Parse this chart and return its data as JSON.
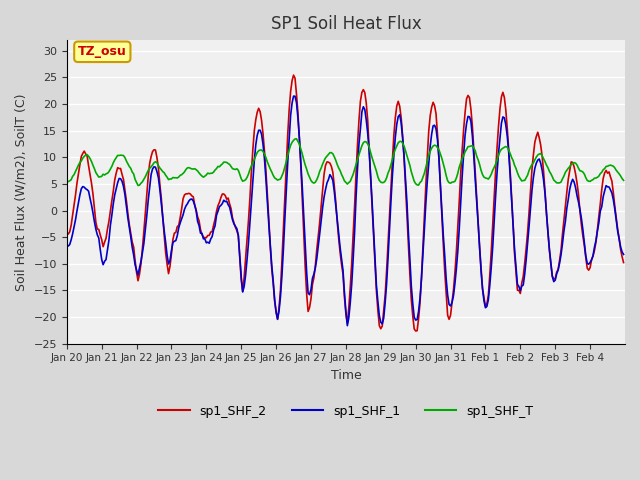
{
  "title": "SP1 Soil Heat Flux",
  "xlabel": "Time",
  "ylabel": "Soil Heat Flux (W/m2), SoilT (C)",
  "ylim": [
    -25,
    32
  ],
  "yticks": [
    -25,
    -20,
    -15,
    -10,
    -5,
    0,
    5,
    10,
    15,
    20,
    25,
    30
  ],
  "xtick_labels": [
    "Jan 20",
    "Jan 21",
    "Jan 22",
    "Jan 23",
    "Jan 24",
    "Jan 25",
    "Jan 26",
    "Jan 27",
    "Jan 28",
    "Jan 29",
    "Jan 30",
    "Jan 31",
    "Feb 1",
    "Feb 2",
    "Feb 3",
    "Feb 4"
  ],
  "legend_labels": [
    "sp1_SHF_2",
    "sp1_SHF_1",
    "sp1_SHF_T"
  ],
  "colors": [
    "#cc0000",
    "#0000cc",
    "#00aa00"
  ],
  "tz_label": "TZ_osu",
  "tz_bg": "#ffff99",
  "tz_border": "#cc9900",
  "tz_text_color": "#cc0000",
  "plot_bg_color": "#f0f0f0",
  "fig_bg_color": "#d8d8d8",
  "font_color": "#333333",
  "n_days": 16,
  "hours_per_day": 24,
  "amp2": [
    8,
    8,
    13,
    5,
    4,
    18,
    24,
    12,
    23,
    22,
    22,
    20,
    20,
    15,
    11,
    9
  ],
  "off2": [
    3,
    0,
    -1,
    -1,
    -1,
    2,
    2,
    -2,
    1,
    -1,
    -1,
    2,
    2,
    0,
    -2,
    -1
  ],
  "amp1": [
    6,
    8,
    11,
    4,
    4,
    16,
    21,
    10,
    21,
    20,
    19,
    18,
    18,
    13,
    9,
    7
  ],
  "off1": [
    -1,
    -2,
    -2,
    -2,
    -2,
    0,
    1,
    -3,
    -1,
    -2,
    -2,
    0,
    0,
    -2,
    -3,
    -2
  ],
  "ampT": [
    2.5,
    2,
    2,
    1,
    1,
    3,
    4,
    3,
    4,
    4,
    4,
    3.5,
    3,
    2.5,
    2,
    1.5
  ],
  "offT": [
    8,
    8.5,
    7,
    7,
    8,
    8.5,
    9.5,
    8,
    9,
    9,
    8.5,
    9,
    9,
    8,
    7,
    7
  ],
  "phase2": 0.25,
  "phase1": 0.27,
  "phaseT": 0.3
}
